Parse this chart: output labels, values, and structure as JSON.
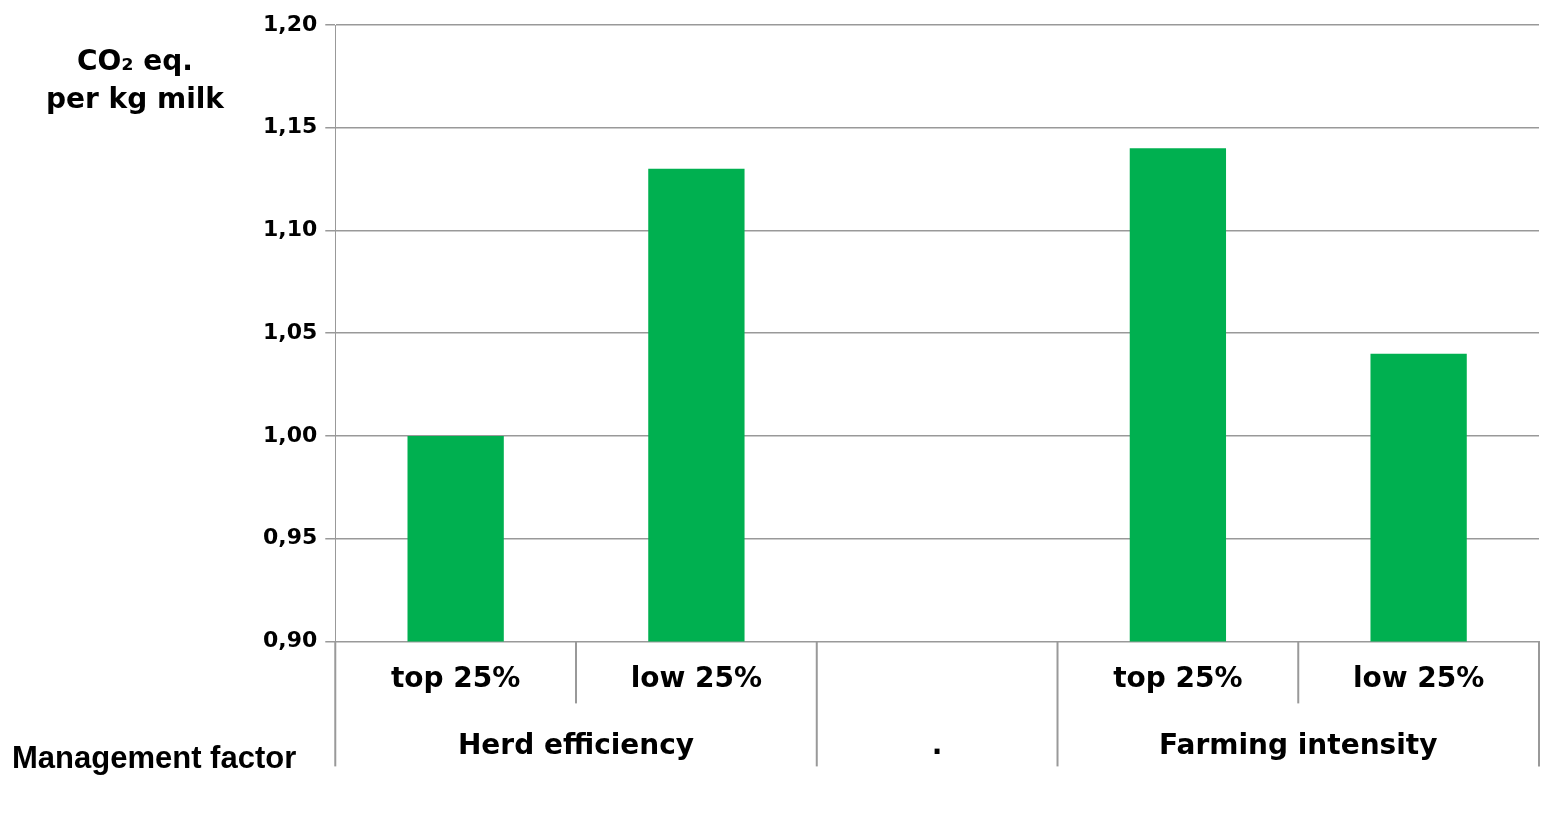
{
  "chart_data": {
    "type": "bar",
    "ylabel": "CO₂ eq.\nper kg milk",
    "xlabel": "Management factor",
    "categories": [
      "top 25%",
      "low 25%",
      null,
      "top 25%",
      "low 25%"
    ],
    "values": [
      1.0,
      1.13,
      null,
      1.14,
      1.04
    ],
    "color": "#00b050",
    "ylim": [
      0.9,
      1.2
    ],
    "yticks": [
      {
        "value": 0.9,
        "label": "0,90"
      },
      {
        "value": 0.95,
        "label": "0,95"
      },
      {
        "value": 1.0,
        "label": "1,00"
      },
      {
        "value": 1.05,
        "label": "1,05"
      },
      {
        "value": 1.1,
        "label": "1,10"
      },
      {
        "value": 1.15,
        "label": "1,15"
      },
      {
        "value": 1.2,
        "label": "1,20"
      }
    ],
    "grid": "y",
    "legend": false,
    "annotations": [
      "Herd efficiency",
      ".",
      "Farming intensity"
    ]
  }
}
